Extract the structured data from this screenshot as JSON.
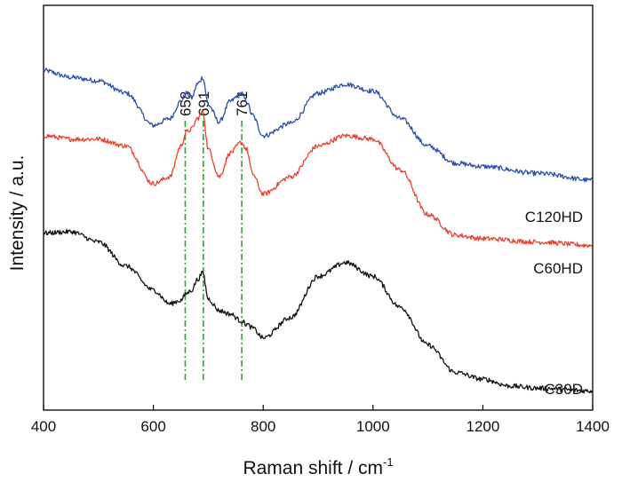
{
  "chart_data": {
    "type": "line",
    "title": "",
    "xlabel": "Raman shift / cm",
    "xlabel_superscript": "-1",
    "ylabel": "Intensity / a.u.",
    "xlim": [
      400,
      1400
    ],
    "x_ticks": [
      400,
      600,
      800,
      1000,
      1200,
      1400
    ],
    "y_ticks_shown": false,
    "grid": false,
    "legend": "none (series labelled directly at right end of curves)",
    "colors": {
      "C120HD": "#2a4fae",
      "C60HD": "#e8412c",
      "C30D": "#111111",
      "reference_lines": "#3f9a3f"
    },
    "reference_lines": [
      {
        "x": 658,
        "label": "658"
      },
      {
        "x": 691,
        "label": "691"
      },
      {
        "x": 761,
        "label": "761"
      }
    ],
    "series": [
      {
        "name": "C120HD",
        "color": "#2a4fae",
        "x": [
          400,
          450,
          500,
          550,
          600,
          630,
          650,
          660,
          670,
          680,
          690,
          700,
          720,
          740,
          760,
          770,
          780,
          800,
          850,
          900,
          950,
          1000,
          1050,
          1100,
          1150,
          1200,
          1300,
          1400
        ],
        "y": [
          4.05,
          3.95,
          3.9,
          3.72,
          3.25,
          3.35,
          3.6,
          3.72,
          3.65,
          3.85,
          3.95,
          3.55,
          3.3,
          3.6,
          3.72,
          3.6,
          3.4,
          3.1,
          3.28,
          3.72,
          3.85,
          3.75,
          3.35,
          2.95,
          2.7,
          2.65,
          2.55,
          2.45
        ]
      },
      {
        "name": "C60HD",
        "color": "#e8412c",
        "x": [
          400,
          450,
          500,
          550,
          600,
          630,
          650,
          660,
          670,
          680,
          690,
          700,
          720,
          740,
          760,
          770,
          780,
          800,
          850,
          900,
          950,
          1000,
          1050,
          1100,
          1150,
          1200,
          1300,
          1400
        ],
        "y": [
          3.1,
          3.05,
          3.05,
          2.95,
          2.4,
          2.5,
          2.95,
          3.15,
          3.2,
          3.35,
          3.45,
          2.9,
          2.5,
          2.85,
          3.0,
          2.9,
          2.55,
          2.25,
          2.5,
          2.95,
          3.1,
          3.05,
          2.6,
          1.95,
          1.65,
          1.6,
          1.55,
          1.5
        ]
      },
      {
        "name": "C30D",
        "color": "#111111",
        "x": [
          400,
          450,
          500,
          550,
          600,
          630,
          650,
          660,
          670,
          680,
          690,
          700,
          720,
          740,
          760,
          770,
          780,
          800,
          850,
          900,
          950,
          1000,
          1050,
          1100,
          1150,
          1200,
          1250,
          1300,
          1400
        ],
        "y": [
          1.68,
          1.7,
          1.55,
          1.2,
          0.85,
          0.65,
          0.7,
          0.8,
          0.85,
          1.0,
          1.1,
          0.72,
          0.55,
          0.5,
          0.4,
          0.35,
          0.3,
          0.15,
          0.45,
          1.05,
          1.25,
          1.05,
          0.6,
          0.05,
          -0.35,
          -0.45,
          -0.55,
          -0.58,
          -0.62
        ]
      }
    ]
  }
}
